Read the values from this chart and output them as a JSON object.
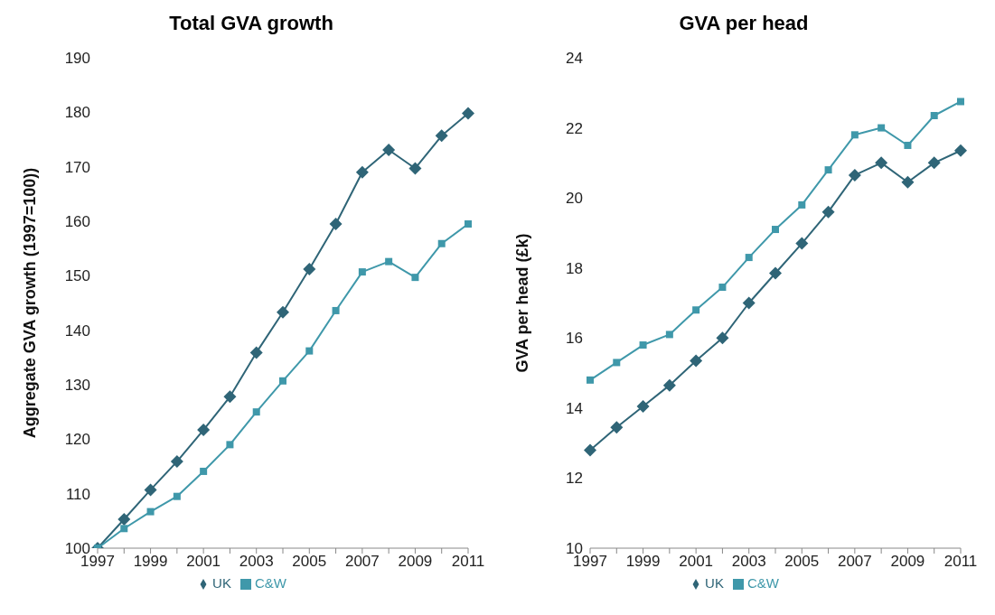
{
  "chart_data": [
    {
      "type": "line",
      "title": "Total GVA growth",
      "ylabel": "Aggregate GVA growth (1997=100))",
      "categories": [
        "1997",
        null,
        "1999",
        null,
        "2001",
        null,
        "2003",
        null,
        "2005",
        null,
        "2007",
        null,
        "2009",
        null,
        "2011"
      ],
      "ylim": [
        100,
        190
      ],
      "yticks": [
        100,
        110,
        120,
        130,
        140,
        150,
        160,
        170,
        180,
        190
      ],
      "grid": false,
      "legend": "bottom",
      "series": [
        {
          "name": "UK",
          "color": "#2f6577",
          "marker": "diamond",
          "values": [
            100,
            105.3,
            110.7,
            115.9,
            121.7,
            127.8,
            135.9,
            143.3,
            151.2,
            159.5,
            169,
            173.1,
            169.7,
            175.7,
            179.8
          ]
        },
        {
          "name": "C&W",
          "color": "#3f98aa",
          "marker": "square",
          "values": [
            100,
            103.6,
            106.7,
            109.5,
            114.1,
            119,
            125,
            130.7,
            136.2,
            143.6,
            150.7,
            152.6,
            149.7,
            155.9,
            159.5
          ]
        }
      ]
    },
    {
      "type": "line",
      "title": "GVA per head",
      "ylabel": "GVA per head (£k)",
      "categories": [
        "1997",
        null,
        "1999",
        null,
        "2001",
        null,
        "2003",
        null,
        "2005",
        null,
        "2007",
        null,
        "2009",
        null,
        "2011"
      ],
      "ylim": [
        10,
        24
      ],
      "yticks": [
        10,
        12,
        14,
        16,
        18,
        20,
        22,
        24
      ],
      "grid": false,
      "legend": "bottom",
      "series": [
        {
          "name": "UK",
          "color": "#2f6577",
          "marker": "diamond",
          "values": [
            12.8,
            13.45,
            14.05,
            14.65,
            15.35,
            16.0,
            17.0,
            17.85,
            18.7,
            19.6,
            20.65,
            21.0,
            20.45,
            21.0,
            21.35
          ]
        },
        {
          "name": "C&W",
          "color": "#3f98aa",
          "marker": "square",
          "values": [
            14.8,
            15.3,
            15.8,
            16.1,
            16.8,
            17.45,
            18.3,
            19.1,
            19.8,
            20.8,
            21.8,
            22.0,
            21.5,
            22.35,
            22.75
          ]
        }
      ]
    }
  ]
}
